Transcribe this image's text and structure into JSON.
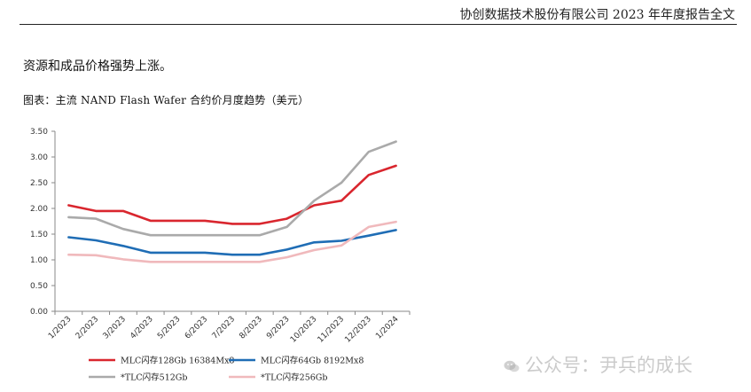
{
  "header": {
    "title": "协创数据技术股份有限公司 2023 年年度报告全文"
  },
  "intro_text": "资源和成品价格强势上涨。",
  "figure_caption": "图表：主流 NAND Flash Wafer 合约价月度趋势（美元）",
  "watermark": {
    "text": "公众号：尹兵的成长",
    "icon": "wechat-icon"
  },
  "chart_data": {
    "type": "line",
    "title": "",
    "xlabel": "",
    "ylabel": "",
    "categories": [
      "1/2023",
      "2/2023",
      "3/2023",
      "4/2023",
      "5/2023",
      "6/2023",
      "7/2023",
      "8/2023",
      "9/2023",
      "10/2023",
      "11/2023",
      "12/2023",
      "1/2024"
    ],
    "ylim": [
      0,
      3.5
    ],
    "yticks": [
      "0.00",
      "0.50",
      "1.00",
      "1.50",
      "2.00",
      "2.50",
      "3.00",
      "3.50"
    ],
    "grid": false,
    "legend_position": "bottom",
    "series": [
      {
        "name": "MLC闪存128Gb 16384Mx8",
        "color": "#d9262e",
        "values": [
          2.06,
          1.95,
          1.95,
          1.76,
          1.76,
          1.76,
          1.7,
          1.7,
          1.8,
          2.06,
          2.15,
          2.65,
          2.83
        ]
      },
      {
        "name": "MLC闪存64Gb 8192Mx8",
        "color": "#1f6db5",
        "values": [
          1.44,
          1.38,
          1.27,
          1.14,
          1.14,
          1.14,
          1.1,
          1.1,
          1.2,
          1.34,
          1.37,
          1.47,
          1.58
        ]
      },
      {
        "name": "*TLC闪存512Gb",
        "color": "#aaaaaa",
        "values": [
          1.83,
          1.8,
          1.6,
          1.48,
          1.48,
          1.48,
          1.48,
          1.48,
          1.64,
          2.15,
          2.5,
          3.1,
          3.3
        ]
      },
      {
        "name": "*TLC闪存256Gb",
        "color": "#f0b9bc",
        "values": [
          1.1,
          1.09,
          1.01,
          0.96,
          0.96,
          0.96,
          0.96,
          0.96,
          1.05,
          1.19,
          1.28,
          1.64,
          1.74
        ]
      }
    ]
  }
}
